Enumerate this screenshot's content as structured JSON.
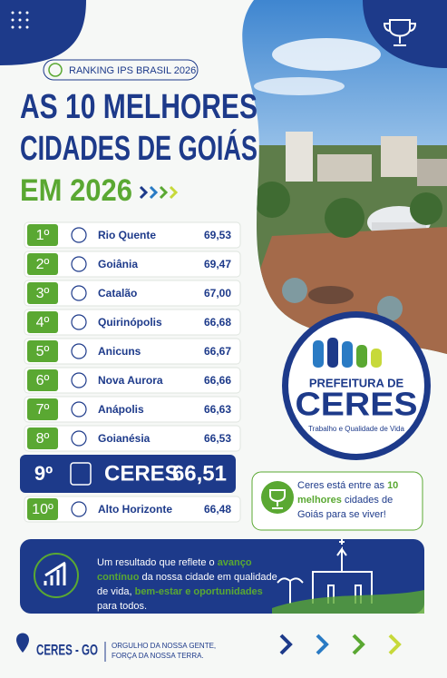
{
  "header": {
    "badge": "RANKING IPS BRASIL 2026",
    "title_lines": [
      "AS 10 MELHORES",
      "CIDADES DE GOIÁS"
    ],
    "title_year": "EM 2026"
  },
  "ranking": [
    {
      "rank": "1º",
      "name": "Rio Quente",
      "score": "69,53"
    },
    {
      "rank": "2º",
      "name": "Goiânia",
      "score": "69,47"
    },
    {
      "rank": "3º",
      "name": "Catalão",
      "score": "67,00"
    },
    {
      "rank": "4º",
      "name": "Quirinópolis",
      "score": "66,68"
    },
    {
      "rank": "5º",
      "name": "Anicuns",
      "score": "66,67"
    },
    {
      "rank": "6º",
      "name": "Nova Aurora",
      "score": "66,66"
    },
    {
      "rank": "7º",
      "name": "Anápolis",
      "score": "66,63"
    },
    {
      "rank": "8º",
      "name": "Goianésia",
      "score": "66,53"
    },
    {
      "rank": "9º",
      "name": "CERES",
      "score": "66,51",
      "highlight": true
    },
    {
      "rank": "10º",
      "name": "Alto Horizonte",
      "score": "66,48"
    }
  ],
  "logo": {
    "top": "PREFEITURA DE",
    "name": "CERES",
    "tagline": "Trabalho e Qualidade de Vida"
  },
  "callout": {
    "parts": [
      "Ceres está entre as ",
      "10 melhores",
      " cidades de Goiás para se viver!"
    ]
  },
  "banner": {
    "parts": [
      "Um resultado que reflete o ",
      "avanço contínuo",
      " da nossa cidade em qualidade de vida, ",
      "bem-estar e oportunidades",
      " para todos."
    ]
  },
  "footer": {
    "location": "CERES - GO",
    "slogan_lines": [
      "ORGULHO DA NOSSA GENTE,",
      "FORÇA DA NOSSA TERRA."
    ]
  }
}
